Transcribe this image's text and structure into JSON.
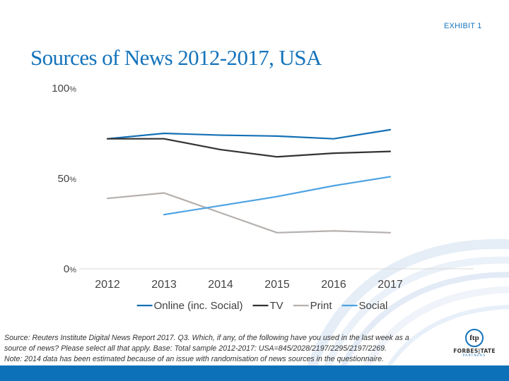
{
  "header": {
    "exhibit": "EXHIBIT 1",
    "title": "Sources of News 2012-2017, USA"
  },
  "chart_data": {
    "type": "line",
    "title": "Sources of News 2012-2017, USA",
    "xlabel": "",
    "ylabel": "",
    "categories": [
      "2012",
      "2013",
      "2014",
      "2015",
      "2016",
      "2017"
    ],
    "ylim": [
      0,
      100
    ],
    "yticks": [
      {
        "value": 0,
        "label": "0%"
      },
      {
        "value": 50,
        "label": "50%"
      },
      {
        "value": 100,
        "label": "100%"
      }
    ],
    "grid": false,
    "legend_position": "bottom",
    "series": [
      {
        "name": "Online (inc. Social)",
        "color": "#1470b5",
        "values": [
          72,
          75,
          74,
          73.5,
          72,
          77
        ]
      },
      {
        "name": "TV",
        "color": "#333333",
        "values": [
          72,
          72,
          66,
          62,
          64,
          65
        ]
      },
      {
        "name": "Print",
        "color": "#b5b0ad",
        "values": [
          39,
          42,
          31,
          20,
          21,
          20
        ]
      },
      {
        "name": "Social",
        "color": "#4ea3e3",
        "values": [
          null,
          30,
          35,
          40,
          46,
          51
        ]
      }
    ]
  },
  "footer": {
    "source_lines": [
      "Source: Reuters Institute Digital News Report 2017. Q3. Which, if any, of the following have you used in the last week as a",
      "source of news? Please select all that apply. Base: Total sample 2012-2017: USA=845/2028/2197/2295/2197/2269.",
      "Note: 2014 data has been estimated because of an issue with randomisation of news sources in the questionnaire."
    ],
    "logo": {
      "monogram": "ftp",
      "name": "FORBES|TATE",
      "subtitle": "PARTNERS"
    }
  },
  "colors": {
    "brand_blue": "#1473bb",
    "footer_bar": "#0c71b8"
  }
}
